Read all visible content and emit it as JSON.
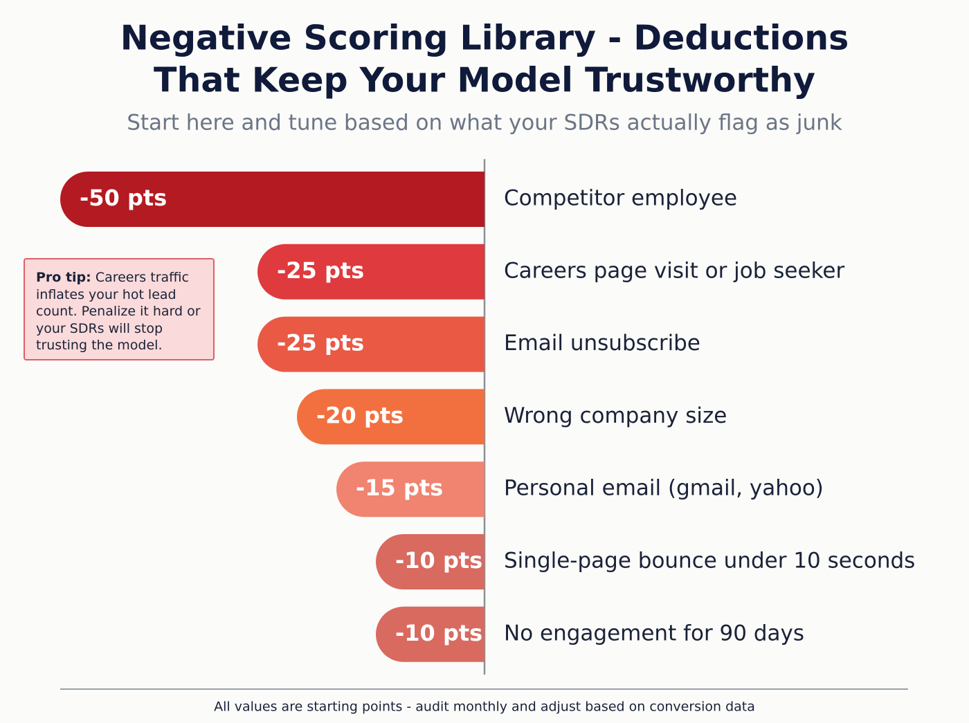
{
  "chart_data": {
    "type": "bar",
    "orientation": "horizontal",
    "title": [
      "Negative Scoring Library - Deductions",
      "That Keep Your Model Trustworthy"
    ],
    "subtitle": "Start here and tune based on what your SDRs actually flag as junk",
    "categories": [
      "Competitor employee",
      "Careers page visit or job seeker",
      "Email unsubscribe",
      "Wrong company size",
      "Personal email (gmail, yahoo)",
      "Single-page bounce under 10 seconds",
      "No engagement for 90 days"
    ],
    "values": [
      -50,
      -25,
      -25,
      -20,
      -15,
      -10,
      -10
    ],
    "value_labels": [
      "-50 pts",
      "-25 pts",
      "-25 pts",
      "-20 pts",
      "-15 pts",
      "-10 pts",
      "-10 pts"
    ],
    "colors": [
      "#b41a21",
      "#df3a3d",
      "#e95944",
      "#f2703f",
      "#f08470",
      "#d96a60",
      "#d96a60"
    ],
    "annotation": {
      "label": "Pro tip:",
      "text": "Careers traffic inflates your hot lead count. Penalize it hard or your SDRs will stop trusting the model."
    },
    "footnote": "All values are starting points - audit monthly and adjust based on conversion data"
  }
}
